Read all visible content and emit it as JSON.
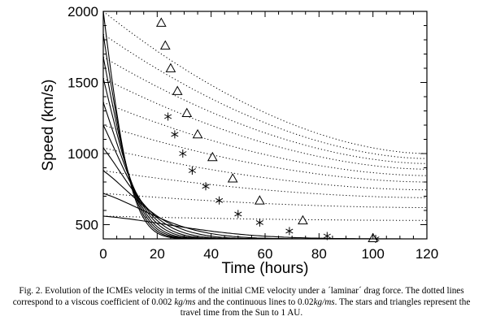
{
  "chart_data": {
    "type": "line",
    "xlabel": "Time (hours)",
    "ylabel": "Speed (km/s)",
    "xlim": [
      0,
      120
    ],
    "ylim": [
      400,
      2000
    ],
    "xticks": [
      "0",
      "20",
      "40",
      "60",
      "80",
      "100",
      "120"
    ],
    "yticks": [
      "500",
      "1000",
      "1500",
      "2000"
    ],
    "grid": false,
    "legend": "none",
    "initial_speeds": [
      2000,
      1840,
      1680,
      1530,
      1360,
      1200,
      1040,
      880,
      720,
      560,
      400
    ],
    "dotted_series_endpoints_at_120h": [
      1000,
      965,
      930,
      890,
      845,
      800,
      745,
      690,
      620,
      530,
      400
    ],
    "continuous_converges_to": 400,
    "stars": [
      {
        "x": 24,
        "y": 1260
      },
      {
        "x": 26.5,
        "y": 1135
      },
      {
        "x": 29.5,
        "y": 1000
      },
      {
        "x": 33,
        "y": 880
      },
      {
        "x": 38,
        "y": 770
      },
      {
        "x": 43,
        "y": 670
      },
      {
        "x": 50,
        "y": 575
      },
      {
        "x": 58,
        "y": 515
      },
      {
        "x": 69,
        "y": 455
      },
      {
        "x": 83,
        "y": 420
      },
      {
        "x": 101,
        "y": 400
      }
    ],
    "triangles": [
      {
        "x": 21.5,
        "y": 1920
      },
      {
        "x": 23,
        "y": 1760
      },
      {
        "x": 25,
        "y": 1600
      },
      {
        "x": 27.5,
        "y": 1440
      },
      {
        "x": 31,
        "y": 1285
      },
      {
        "x": 35,
        "y": 1135
      },
      {
        "x": 40.5,
        "y": 975
      },
      {
        "x": 48,
        "y": 825
      },
      {
        "x": 58,
        "y": 670
      },
      {
        "x": 74,
        "y": 530
      },
      {
        "x": 100,
        "y": 405
      }
    ]
  },
  "caption": {
    "p1": "Fig. 2. Evolution of the ICMEs velocity in terms of the initial CME velocity under a ´laminar´ drag force. The dotted lines correspond to a viscous coefficient of 0.002 ",
    "u1": "kg/ms",
    "p2": " and the continuous lines to 0.02",
    "u2": "kg/ms",
    "p3": ". The stars and triangles represent the travel time from the Sun to 1 AU."
  }
}
